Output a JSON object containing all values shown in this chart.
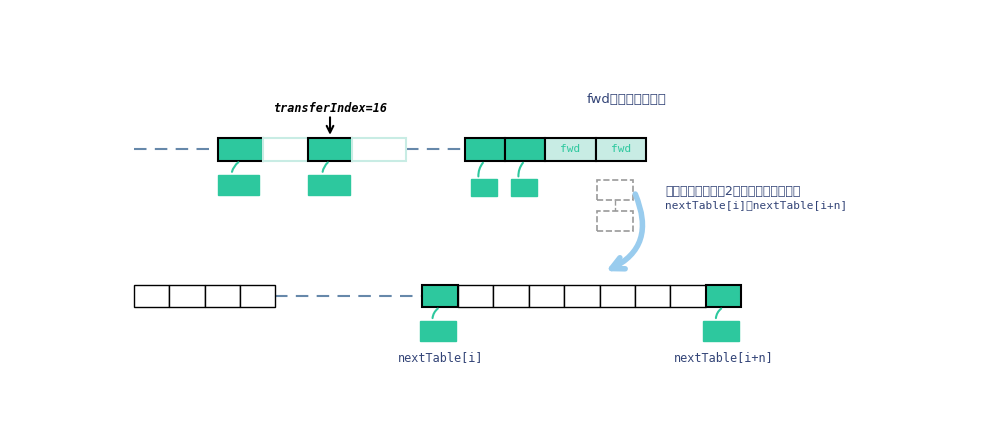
{
  "bg_color": "#ffffff",
  "teal": "#2DC89E",
  "teal_light": "#c8ece4",
  "border_color": "#000000",
  "dash_color": "#6688aa",
  "fwd_text_color": "#2DC89E",
  "annotation_color": "#334477",
  "arrow_color": "#99ccee",
  "gray_dash": "#999999",
  "transferIndex_label": "transferIndex=16",
  "fwd_label": "fwd",
  "fwd_text": "fwd表示已经被迁移",
  "split_text1": "将此链表，拆分成2个新链表，将其插入",
  "split_text2": "nextTable[i]和nextTable[i+n]",
  "nextTable_i": "nextTable[i]",
  "nextTable_in": "nextTable[i+n]"
}
